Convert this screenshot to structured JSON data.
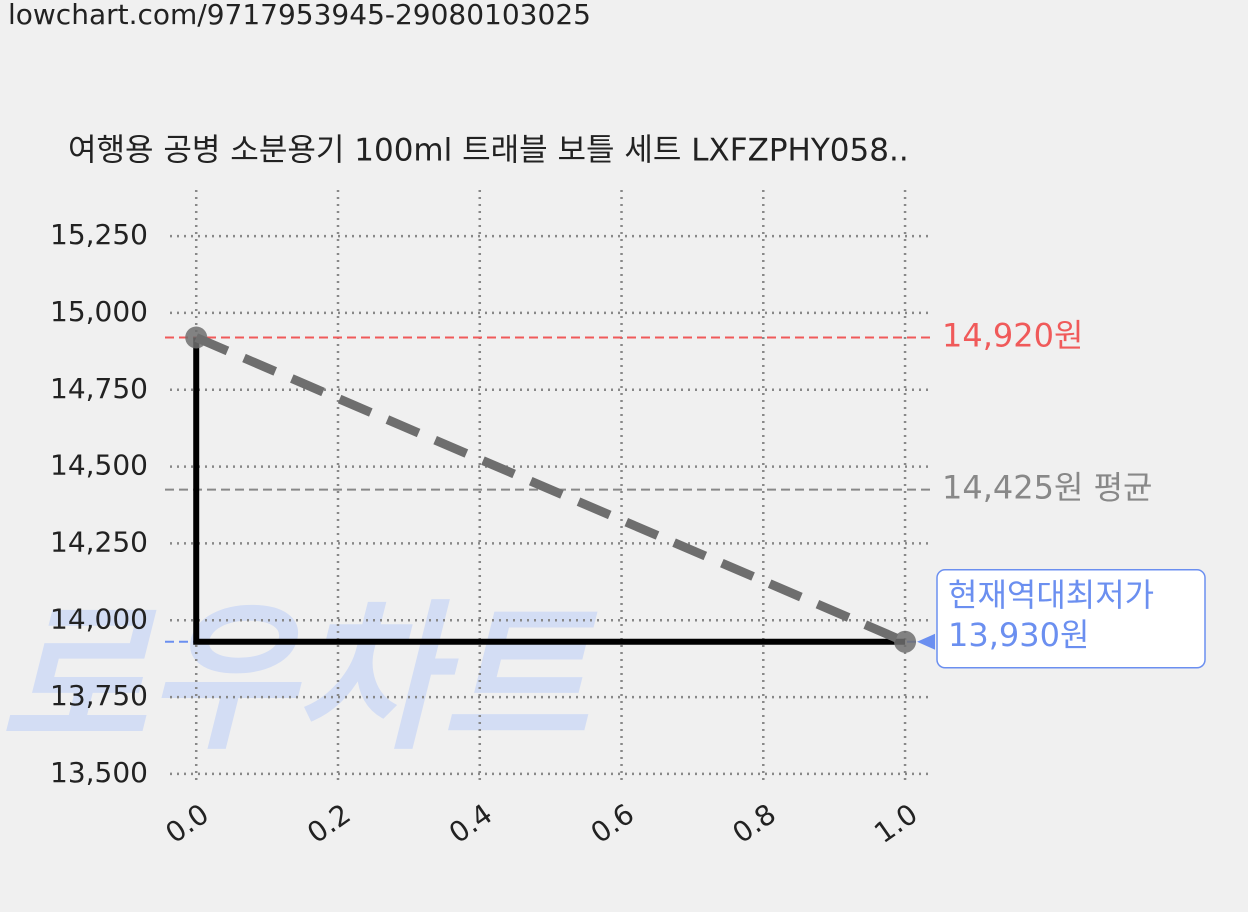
{
  "url": "lowchart.com/9717953945-29080103025",
  "watermark": "로우차트",
  "chart_data": {
    "type": "line",
    "title": "여행용 공병 소분용기 100ml 트래블 보틀 세트 LXFZPHY058..",
    "xlim": [
      -0.037,
      1.038
    ],
    "ylim": [
      13464,
      15400
    ],
    "xticks": [
      {
        "value": 0,
        "label": "0.0"
      },
      0.2,
      0.4,
      0.6,
      0.8,
      {
        "value": 1,
        "label": "1.0"
      }
    ],
    "yticks": [
      {
        "value": 13500,
        "label": "13,500"
      },
      {
        "value": 13750,
        "label": "13,750"
      },
      {
        "value": 14000,
        "label": "14,000"
      },
      {
        "value": 14250,
        "label": "14,250"
      },
      {
        "value": 14500,
        "label": "14,500"
      },
      {
        "value": 14750,
        "label": "14,750"
      },
      {
        "value": 15000,
        "label": "15,000"
      },
      {
        "value": 15250,
        "label": "15,250"
      }
    ],
    "grid": true,
    "series": [
      {
        "x": [
          0,
          0,
          1
        ],
        "values": [
          14920,
          13930,
          13930
        ],
        "color": "#000000",
        "style": "solid"
      },
      {
        "x": [
          0,
          1
        ],
        "values": [
          14920,
          13930
        ],
        "color": "#6e6e6e",
        "style": "dashed"
      }
    ],
    "reference_lines": [
      {
        "value": 14920,
        "label": "14,920원",
        "color": "#f05a5a"
      },
      {
        "value": 14425,
        "label": "14,425원 평균",
        "color": "#888888"
      },
      {
        "value": 13930,
        "color": "#6b8ff0"
      }
    ],
    "annotation": {
      "x": 1,
      "value": 13930,
      "lines": [
        "현재역대최저가",
        "13,930원"
      ],
      "color": "#6b8ff0"
    }
  }
}
